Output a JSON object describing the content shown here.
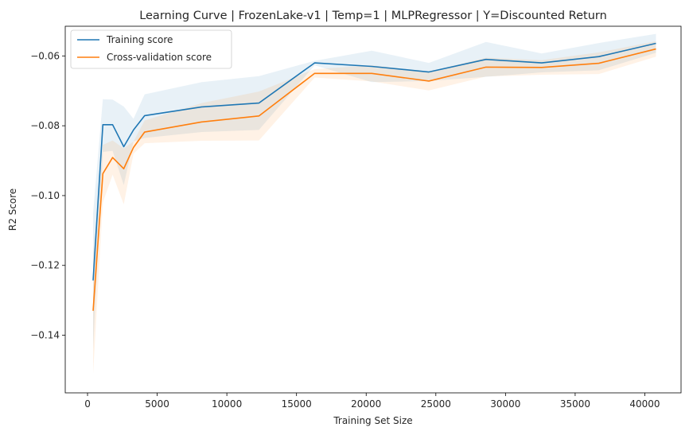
{
  "chart_data": {
    "type": "line",
    "title": "Learning Curve | FrozenLake-v1 | Temp=1 | MLPRegressor | Y=Discounted Return",
    "xlabel": "Training Set Size",
    "ylabel": "R2 Score",
    "xlim": [
      -1600,
      42600
    ],
    "ylim": [
      -0.1565,
      -0.0515
    ],
    "xticks": [
      0,
      5000,
      10000,
      15000,
      20000,
      25000,
      30000,
      35000,
      40000
    ],
    "xtick_labels": [
      "0",
      "5000",
      "10000",
      "15000",
      "20000",
      "25000",
      "30000",
      "35000",
      "40000"
    ],
    "yticks": [
      -0.14,
      -0.12,
      -0.1,
      -0.08,
      -0.06
    ],
    "ytick_labels": [
      "−0.14",
      "−0.12",
      "−0.10",
      "−0.08",
      "−0.06"
    ],
    "grid": false,
    "legend_position": "upper-left",
    "x": [
      400,
      1100,
      1800,
      2600,
      3300,
      4100,
      8200,
      12300,
      16300,
      20400,
      24500,
      28600,
      32600,
      36700,
      40800
    ],
    "series": [
      {
        "name": "Training score",
        "color": "#1f77b4",
        "values": [
          -0.1243,
          -0.0797,
          -0.0797,
          -0.086,
          -0.0812,
          -0.0771,
          -0.0746,
          -0.0735,
          -0.062,
          -0.063,
          -0.0646,
          -0.061,
          -0.062,
          -0.0602,
          -0.0564
        ],
        "band_upper": [
          -0.105,
          -0.0724,
          -0.0725,
          -0.0745,
          -0.078,
          -0.071,
          -0.0675,
          -0.0658,
          -0.0614,
          -0.0585,
          -0.062,
          -0.056,
          -0.0593,
          -0.0563,
          -0.0537
        ],
        "band_lower": [
          -0.144,
          -0.0875,
          -0.0872,
          -0.097,
          -0.0845,
          -0.0835,
          -0.0818,
          -0.0812,
          -0.0627,
          -0.0675,
          -0.0672,
          -0.066,
          -0.0647,
          -0.0641,
          -0.0591
        ]
      },
      {
        "name": "Cross-validation score",
        "color": "#ff7f0e",
        "values": [
          -0.133,
          -0.0937,
          -0.0891,
          -0.0923,
          -0.0862,
          -0.0818,
          -0.0789,
          -0.0772,
          -0.065,
          -0.065,
          -0.0672,
          -0.0632,
          -0.0633,
          -0.0621,
          -0.058
        ],
        "band_upper": [
          -0.118,
          -0.0855,
          -0.0842,
          -0.0865,
          -0.0845,
          -0.0785,
          -0.0735,
          -0.0702,
          -0.0638,
          -0.0627,
          -0.0645,
          -0.0605,
          -0.0612,
          -0.059,
          -0.0558
        ],
        "band_lower": [
          -0.151,
          -0.102,
          -0.094,
          -0.1025,
          -0.088,
          -0.085,
          -0.0843,
          -0.0842,
          -0.0662,
          -0.0673,
          -0.0699,
          -0.0659,
          -0.0654,
          -0.0652,
          -0.0602
        ]
      }
    ]
  }
}
